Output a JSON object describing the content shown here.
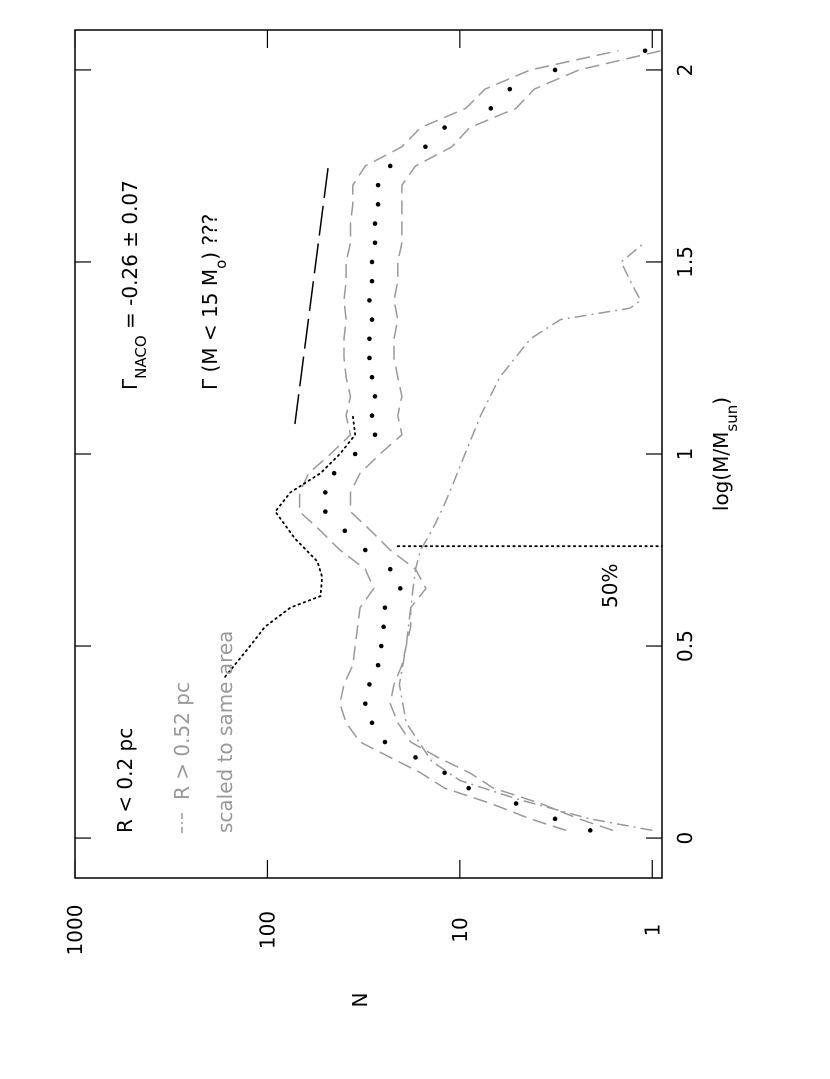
{
  "chart_data": {
    "type": "line",
    "xlabel": [
      "log(M/M",
      "sun",
      ")"
    ],
    "ylabel": "N",
    "xlim": [
      -0.104,
      2.104
    ],
    "ylim": [
      0.89,
      1000
    ],
    "yscale": "log",
    "xticks": [
      0,
      0.5,
      1,
      1.5,
      2
    ],
    "yticks": [
      1,
      10,
      100,
      1000
    ],
    "annotations": [
      [
        "Γ",
        "NACO",
        " =  -0.26 ± 0.07"
      ],
      [
        "Γ (M < 15  M",
        "o",
        ")  ???"
      ],
      [
        "R < 0.2  pc"
      ],
      [
        "R > 0.52  pc"
      ],
      [
        "scaled to same area"
      ],
      [
        "50%"
      ]
    ],
    "series": [
      {
        "style": "dots",
        "color": "#000000",
        "x": [
          0.02,
          0.05,
          0.09,
          0.13,
          0.17,
          0.21,
          0.25,
          0.3,
          0.35,
          0.4,
          0.45,
          0.5,
          0.55,
          0.6,
          0.65,
          0.7,
          0.75,
          0.8,
          0.85,
          0.9,
          0.95,
          1,
          1.05,
          1.1,
          1.15,
          1.2,
          1.25,
          1.3,
          1.35,
          1.4,
          1.45,
          1.5,
          1.55,
          1.6,
          1.65,
          1.7,
          1.75,
          1.8,
          1.85,
          1.9,
          1.95,
          2,
          2.05
        ],
        "values": [
          2.1,
          3.2,
          5.1,
          9,
          12,
          17,
          24.5,
          28.6,
          31,
          29.5,
          26.6,
          25.6,
          24.9,
          24.5,
          20.4,
          23,
          31,
          39.6,
          50,
          50,
          45,
          35,
          27.6,
          28.6,
          27.6,
          28.6,
          29.5,
          29.5,
          28.6,
          29.5,
          28.6,
          28.6,
          27.6,
          27.6,
          26.6,
          26.6,
          23,
          15.1,
          12,
          6.9,
          5.5,
          3.2,
          1.09
        ]
      },
      {
        "style": "dashed",
        "color": "#999999",
        "x": [
          0.02,
          0.05,
          0.09,
          0.13,
          0.17,
          0.21,
          0.25,
          0.3,
          0.35,
          0.4,
          0.45,
          0.5,
          0.55,
          0.6,
          0.65,
          0.7,
          0.75,
          0.8,
          0.85,
          0.9,
          0.95,
          1,
          1.05,
          1.1,
          1.15,
          1.2,
          1.25,
          1.3,
          1.35,
          1.4,
          1.45,
          1.5,
          1.55,
          1.6,
          1.65,
          1.7,
          1.75,
          1.8,
          1.85,
          1.9,
          1.95,
          2,
          2.05
        ],
        "values": [
          2.8,
          4.3,
          6.9,
          12,
          16,
          23,
          33,
          39,
          42,
          40,
          36,
          35,
          34,
          33,
          28,
          31,
          42,
          53,
          68,
          68,
          61,
          47,
          37,
          39,
          37,
          39,
          40,
          40,
          39,
          40,
          39,
          39,
          37,
          37,
          36,
          36,
          31,
          20,
          16,
          9.3,
          7.4,
          4.3,
          1.5
        ]
      },
      {
        "style": "dashed",
        "color": "#999999",
        "x": [
          0.02,
          0.05,
          0.09,
          0.13,
          0.17,
          0.21,
          0.25,
          0.3,
          0.35,
          0.4,
          0.45,
          0.5,
          0.55,
          0.6,
          0.65,
          0.7,
          0.75,
          0.8,
          0.85,
          0.9,
          0.95,
          1,
          1.05,
          1.1,
          1.15,
          1.2,
          1.25,
          1.3,
          1.35,
          1.4,
          1.45,
          1.5,
          1.55,
          1.6,
          1.65,
          1.7,
          1.75,
          1.8,
          1.85,
          1.9,
          1.95,
          2,
          2.05
        ],
        "values": [
          1.6,
          2.4,
          3.8,
          6.7,
          8.9,
          13,
          18,
          21,
          23,
          22,
          20,
          19,
          18,
          18,
          15,
          17,
          23,
          29,
          37,
          37,
          33,
          26,
          20,
          21,
          20,
          21,
          22,
          22,
          21,
          22,
          21,
          21,
          20,
          20,
          20,
          20,
          17,
          11,
          8.9,
          5.1,
          4.1,
          2.4,
          0.9
        ]
      },
      {
        "style": "dashdot",
        "color": "#999999",
        "x": [
          0.02,
          0.05,
          0.1,
          0.15,
          0.2,
          0.3,
          0.4,
          0.5,
          0.6,
          0.7,
          0.75,
          0.8,
          0.85,
          0.9,
          1.0,
          1.1,
          1.2,
          1.3,
          1.35,
          1.38,
          1.4,
          1.45,
          1.5,
          1.55
        ],
        "values": [
          1,
          2.1,
          4.9,
          10,
          14,
          19,
          20.6,
          19,
          18,
          17,
          16,
          14,
          12.5,
          11.3,
          9.4,
          7.8,
          6.2,
          4.3,
          3.0,
          1.3,
          1.15,
          1.3,
          1.45,
          1.1
        ]
      },
      {
        "style": "dotted",
        "color": "#000000",
        "x": [
          0.42,
          0.5,
          0.55,
          0.6,
          0.63,
          0.68,
          0.72,
          0.78,
          0.85,
          0.9,
          0.95,
          1.0,
          1.05,
          1.1
        ],
        "values": [
          166,
          123,
          103,
          76,
          53,
          52,
          55,
          72,
          91,
          76,
          53,
          42,
          35,
          36
        ]
      },
      {
        "style": "longdash",
        "color": "#000000",
        "x": [
          1.078,
          1.76
        ],
        "values": [
          72,
          48
        ]
      },
      {
        "style": "dotted",
        "color": "#000000",
        "x": [
          0.76,
          0.76
        ],
        "values": [
          21,
          0.89
        ]
      }
    ]
  }
}
